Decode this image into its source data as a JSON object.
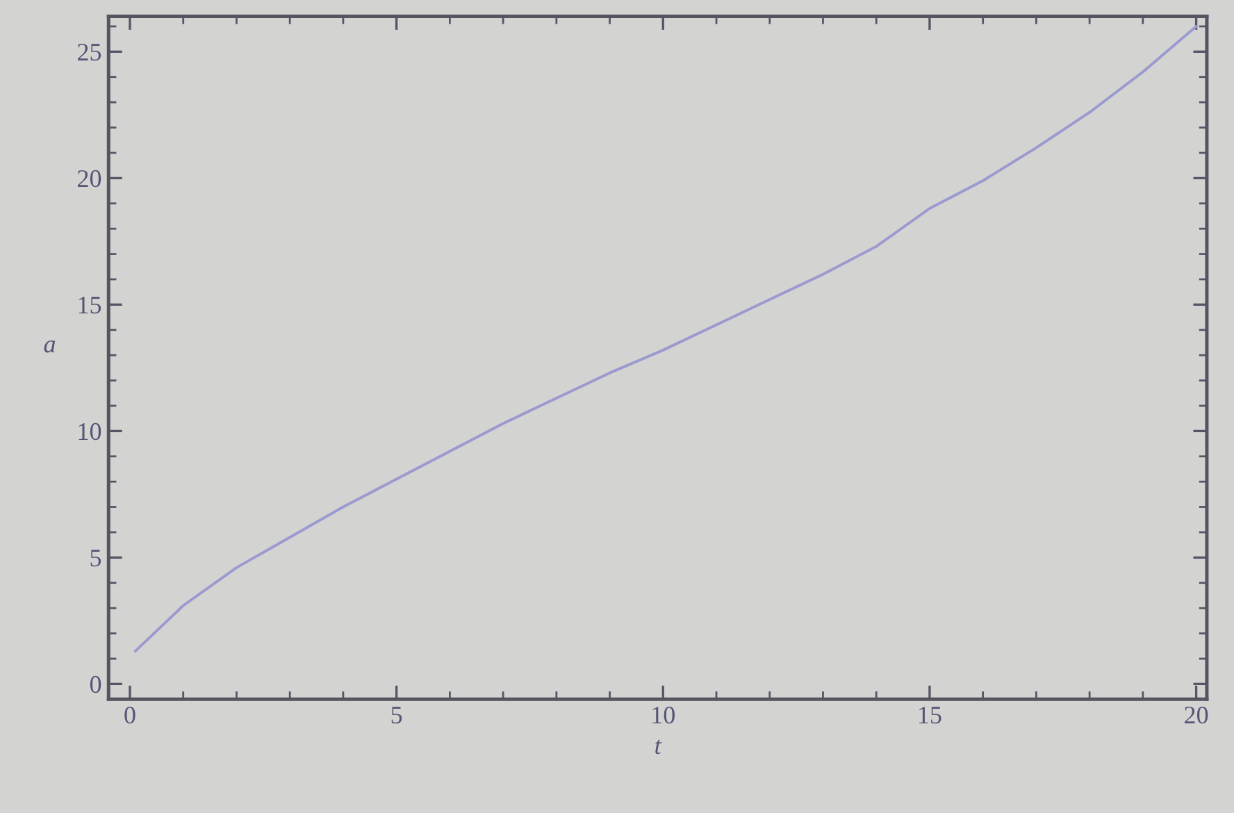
{
  "chart_data": {
    "type": "line",
    "xlabel": "t",
    "ylabel": "a",
    "x": [
      0.1,
      1,
      2,
      3,
      4,
      5,
      6,
      7,
      8,
      9,
      10,
      11,
      12,
      13,
      14,
      15,
      16,
      17,
      18,
      19,
      20
    ],
    "series": [
      {
        "color": "#9a9ad0",
        "values": [
          1.3,
          3.1,
          4.6,
          5.8,
          7.0,
          8.1,
          9.2,
          10.3,
          11.3,
          12.3,
          13.2,
          14.2,
          15.2,
          16.2,
          17.3,
          18.8,
          19.9,
          21.2,
          22.6,
          24.2,
          26.0
        ]
      }
    ],
    "xlim": [
      -0.4,
      20.2
    ],
    "ylim": [
      -0.6,
      26.4
    ],
    "xticks": [
      0,
      5,
      10,
      15,
      20
    ],
    "yticks": [
      0,
      5,
      10,
      15,
      20,
      25
    ],
    "marker": "none",
    "line_style": "solid"
  }
}
